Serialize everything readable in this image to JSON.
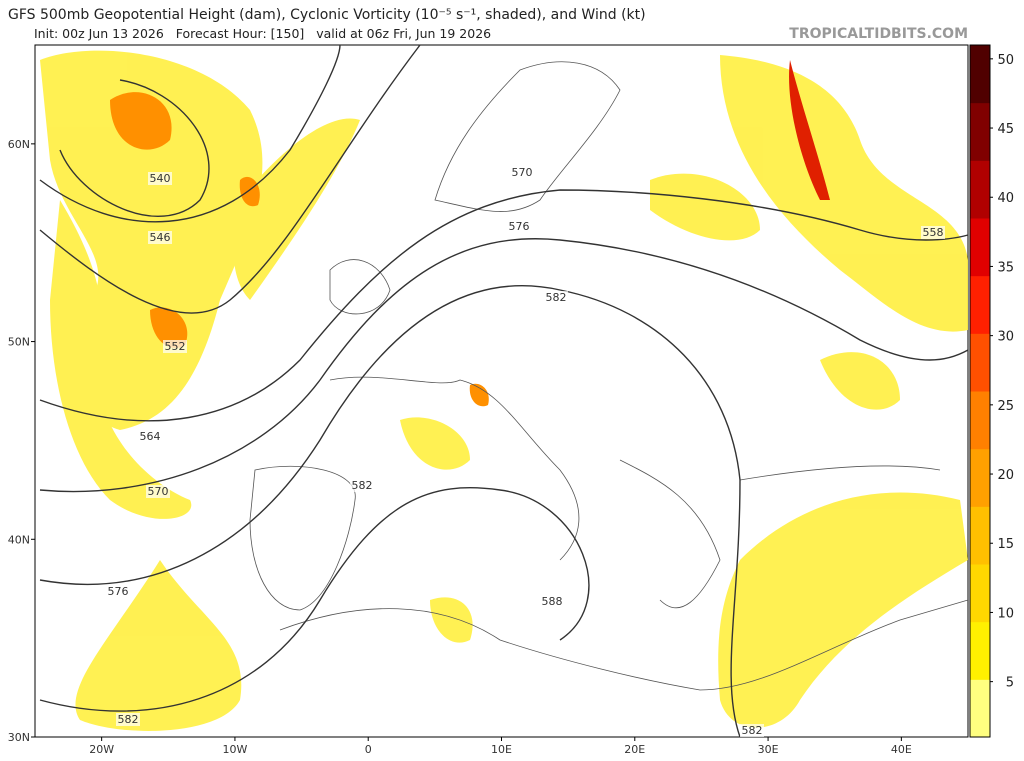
{
  "header": {
    "title": "GFS 500mb Geopotential Height (dam), Cyclonic Vorticity (10⁻⁵ s⁻¹, shaded), and Wind (kt)",
    "subtitle": "Init: 00z Jun 13 2026   Forecast Hour: [150]   valid at 06z Fri, Jun 19 2026",
    "site": "TROPICALTIDBITS.COM"
  },
  "map": {
    "xlim": [
      -25,
      45
    ],
    "ylim": [
      30,
      65
    ],
    "lat_ticks": [
      {
        "value": 60,
        "label": "60N"
      },
      {
        "value": 50,
        "label": "50N"
      },
      {
        "value": 40,
        "label": "40N"
      },
      {
        "value": 30,
        "label": "30N"
      }
    ],
    "lon_ticks": [
      {
        "value": -20,
        "label": "20W"
      },
      {
        "value": -10,
        "label": "10W"
      },
      0,
      {
        "value": 10,
        "label": "10E"
      },
      {
        "value": 20,
        "label": "20E"
      },
      {
        "value": 30,
        "label": "30E"
      },
      {
        "value": 40,
        "label": "40E"
      }
    ],
    "contour_labels": [
      540,
      546,
      552,
      564,
      570,
      576,
      582,
      582,
      588,
      582,
      576,
      570,
      558,
      582
    ]
  },
  "colorbar": {
    "lim": [
      1,
      51
    ],
    "ticks": [
      5,
      10,
      15,
      20,
      25,
      30,
      35,
      40,
      45,
      50
    ],
    "colors": [
      "#ffff80",
      "#fff000",
      "#ffd800",
      "#ffc000",
      "#ffa000",
      "#ff8000",
      "#ff5000",
      "#ff2000",
      "#e00000",
      "#b00000",
      "#800000",
      "#500000"
    ]
  }
}
